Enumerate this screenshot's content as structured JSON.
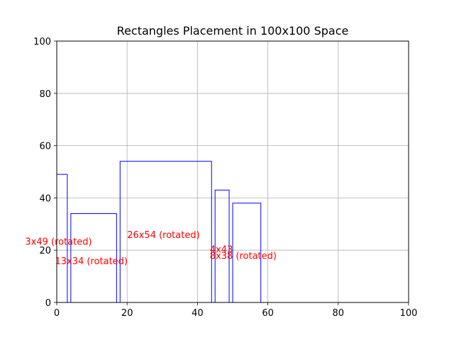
{
  "chart_data": {
    "type": "rectangles",
    "title": "Rectangles Placement in 100x100 Space",
    "xlabel": "",
    "ylabel": "",
    "xlim": [
      0,
      100
    ],
    "ylim": [
      0,
      100
    ],
    "x_ticks": [
      0,
      20,
      40,
      60,
      80,
      100
    ],
    "y_ticks": [
      0,
      20,
      40,
      60,
      80,
      100
    ],
    "grid": true,
    "rect_color": "#0000ff",
    "label_color": "#ff0000",
    "rectangles": [
      {
        "label": "3x49 (rotated)",
        "x": 0,
        "y": 0,
        "w": 3,
        "h": 49,
        "label_x": -9,
        "label_y": 23.5
      },
      {
        "label": "13x34 (rotated)",
        "x": 4,
        "y": 0,
        "w": 13,
        "h": 34,
        "label_x": -0.5,
        "label_y": 16
      },
      {
        "label": "26x54 (rotated)",
        "x": 18,
        "y": 0,
        "w": 26,
        "h": 54,
        "label_x": 20,
        "label_y": 26
      },
      {
        "label": "4x43",
        "x": 45,
        "y": 0,
        "w": 4,
        "h": 43,
        "label_x": 43.5,
        "label_y": 20.5
      },
      {
        "label": "8x38 (rotated)",
        "x": 50,
        "y": 0,
        "w": 8,
        "h": 38,
        "label_x": 43.5,
        "label_y": 18
      }
    ]
  }
}
